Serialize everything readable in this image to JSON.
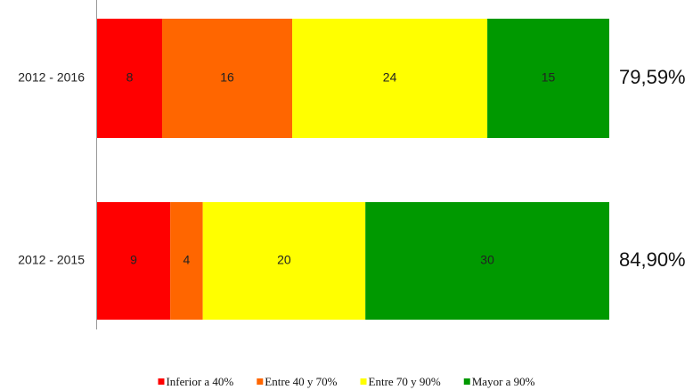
{
  "chart_data": {
    "type": "bar",
    "orientation": "horizontal",
    "stacking": "percent",
    "categories": [
      "2012 - 2016",
      "2012 - 2015"
    ],
    "series": [
      {
        "name": "Inferior a 40%",
        "color": "#ff0000",
        "values": [
          8,
          9
        ]
      },
      {
        "name": "Entre 40 y 70%",
        "color": "#ff6600",
        "values": [
          16,
          4
        ]
      },
      {
        "name": "Entre 70 y 90%",
        "color": "#ffff00",
        "values": [
          24,
          20
        ]
      },
      {
        "name": "Mayor a 90%",
        "color": "#009900",
        "values": [
          15,
          30
        ]
      }
    ],
    "row_labels": [
      "79,59%",
      "84,90%"
    ],
    "legend": "bottom"
  }
}
